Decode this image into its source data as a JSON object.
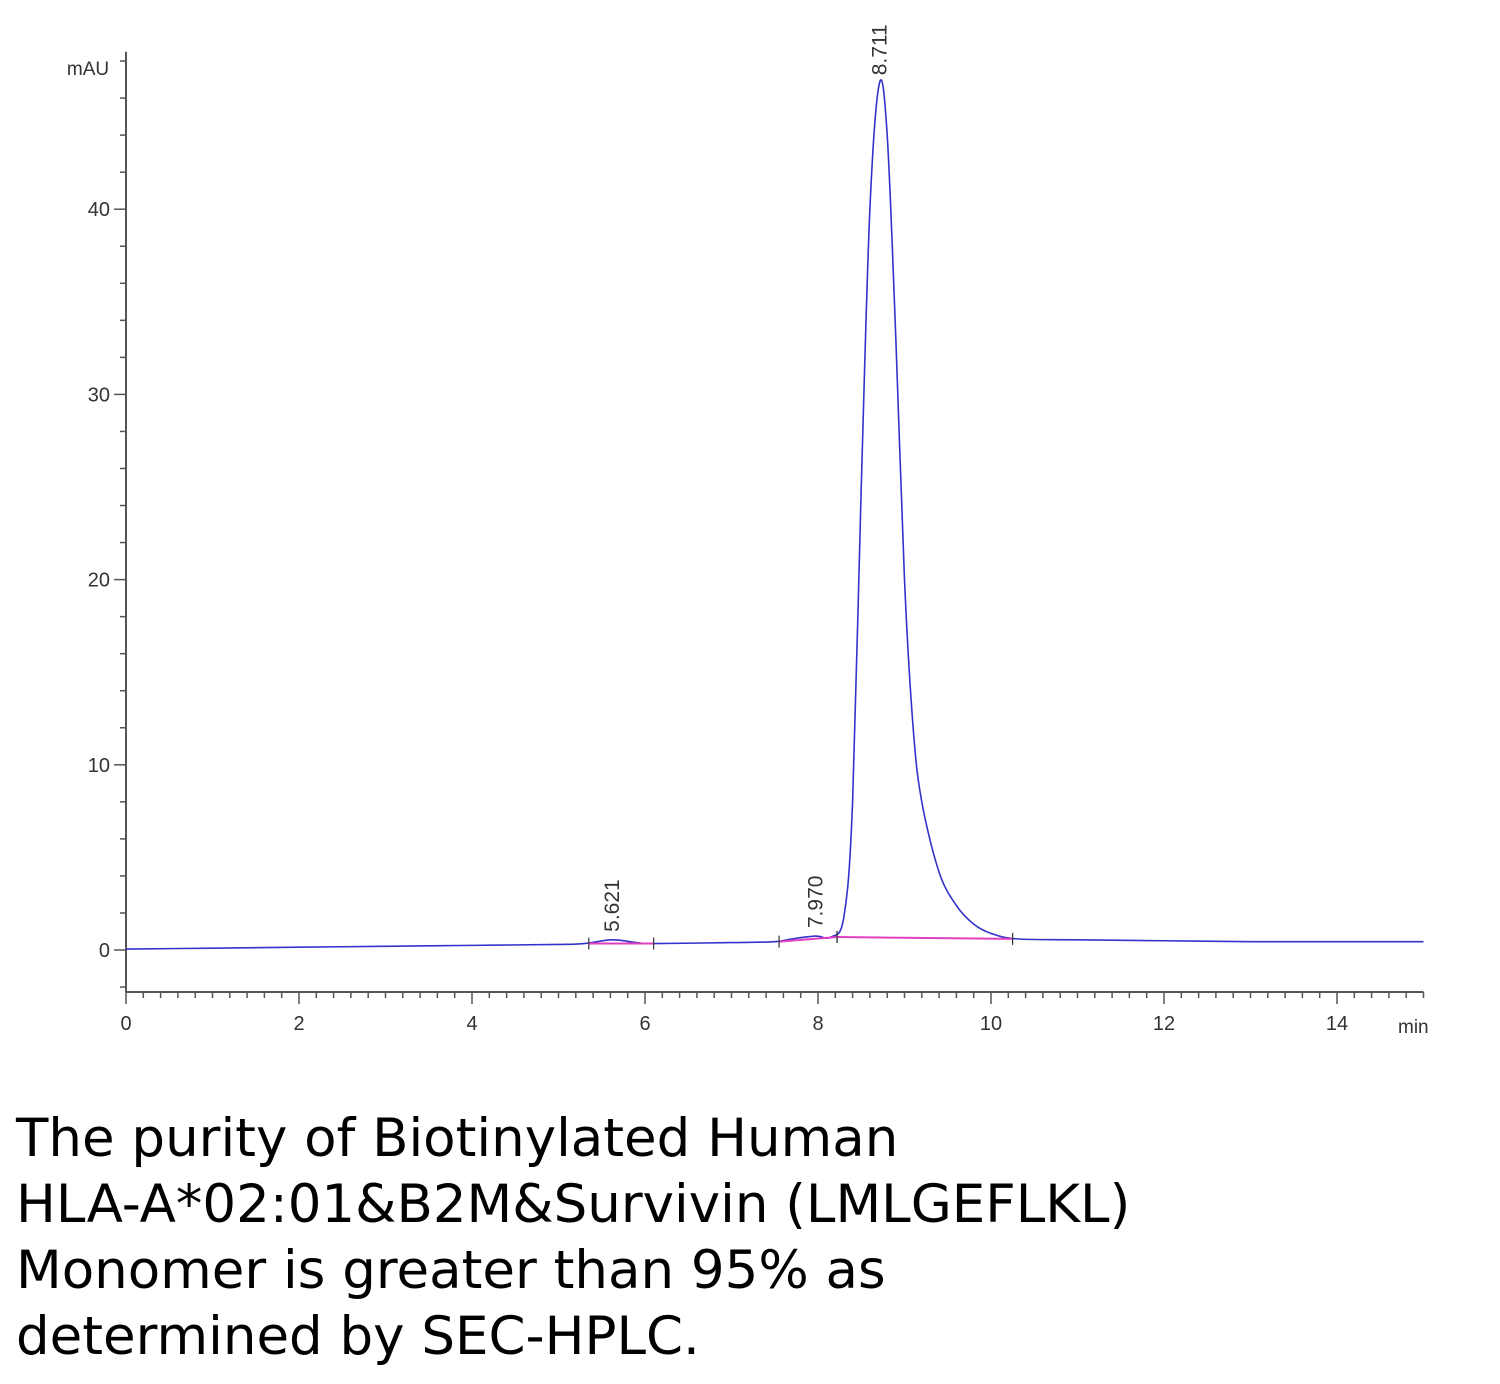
{
  "chart_data": {
    "type": "line",
    "ylabel": "mAU",
    "xlabel": "min",
    "xlim": [
      0,
      15
    ],
    "ylim": [
      -2.3,
      48.5
    ],
    "x_ticks": [
      "0",
      "2",
      "4",
      "6",
      "8",
      "10",
      "12",
      "14"
    ],
    "y_ticks": [
      "0",
      "10",
      "20",
      "30",
      "40"
    ],
    "grid": false,
    "series": [
      {
        "color": "#3333cc",
        "points": [
          [
            0,
            0.05
          ],
          [
            1,
            0.1
          ],
          [
            2,
            0.15
          ],
          [
            3,
            0.2
          ],
          [
            4,
            0.25
          ],
          [
            5,
            0.3
          ],
          [
            5.3,
            0.35
          ],
          [
            5.62,
            0.55
          ],
          [
            5.9,
            0.4
          ],
          [
            6.1,
            0.35
          ],
          [
            7,
            0.4
          ],
          [
            7.5,
            0.45
          ],
          [
            7.7,
            0.6
          ],
          [
            7.97,
            0.75
          ],
          [
            8.15,
            0.7
          ],
          [
            8.3,
            1.8
          ],
          [
            8.4,
            8
          ],
          [
            8.5,
            25
          ],
          [
            8.6,
            40
          ],
          [
            8.71,
            46.8
          ],
          [
            8.8,
            44
          ],
          [
            8.9,
            33
          ],
          [
            9.0,
            20
          ],
          [
            9.1,
            12
          ],
          [
            9.2,
            8
          ],
          [
            9.4,
            4.2
          ],
          [
            9.6,
            2.4
          ],
          [
            9.8,
            1.4
          ],
          [
            10.0,
            0.9
          ],
          [
            10.3,
            0.6
          ],
          [
            11,
            0.55
          ],
          [
            12,
            0.5
          ],
          [
            13,
            0.45
          ],
          [
            14,
            0.45
          ],
          [
            15,
            0.45
          ]
        ]
      }
    ],
    "baselines": [
      {
        "color": "#e040c0",
        "points": [
          [
            5.35,
            0.35
          ],
          [
            6.1,
            0.35
          ]
        ]
      },
      {
        "color": "#e040c0",
        "points": [
          [
            7.55,
            0.45
          ],
          [
            8.22,
            0.7
          ]
        ]
      },
      {
        "color": "#e040c0",
        "points": [
          [
            8.22,
            0.7
          ],
          [
            10.25,
            0.6
          ]
        ]
      }
    ],
    "peaks": [
      {
        "rt": 5.621,
        "label": "5.621",
        "height": 0.55
      },
      {
        "rt": 7.97,
        "label": "7.970",
        "height": 0.75
      },
      {
        "rt": 8.711,
        "label": "8.711",
        "height": 46.8
      }
    ]
  },
  "caption": {
    "lines": [
      "The purity of Biotinylated Human",
      "HLA-A*02:01&B2M&Survivin (LMLGEFLKL)",
      "Monomer is greater than 95% as",
      "determined by SEC-HPLC."
    ]
  }
}
